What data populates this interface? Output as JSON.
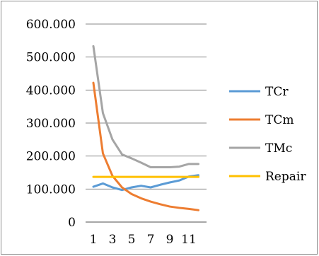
{
  "chart_data": {
    "type": "line",
    "x": [
      1,
      2,
      3,
      4,
      5,
      6,
      7,
      8,
      9,
      10,
      11,
      12
    ],
    "x_tick_labels": [
      "1",
      "3",
      "5",
      "7",
      "9",
      "11"
    ],
    "y_tick_labels": [
      "0",
      "100.000",
      "200.000",
      "300.000",
      "400.000",
      "500.000",
      "600.000"
    ],
    "ylim": [
      0,
      600
    ],
    "grid": true,
    "legend_position": "right",
    "series": [
      {
        "name": "TCr",
        "color": "#5b9bd5",
        "values": [
          107,
          117,
          105,
          97,
          105,
          110,
          105,
          113,
          120,
          126,
          138,
          142
        ]
      },
      {
        "name": "TCm",
        "color": "#ed7d31",
        "values": [
          422,
          208,
          140,
          105,
          85,
          72,
          62,
          54,
          47,
          43,
          40,
          36
        ]
      },
      {
        "name": "TMc",
        "color": "#a5a5a5",
        "values": [
          533,
          330,
          250,
          205,
          193,
          180,
          166,
          166,
          166,
          168,
          176,
          176
        ]
      },
      {
        "name": "Repair",
        "color": "#ffc000",
        "values": [
          137,
          137,
          137,
          137,
          137,
          137,
          137,
          137,
          137,
          137,
          137,
          137
        ]
      }
    ]
  }
}
